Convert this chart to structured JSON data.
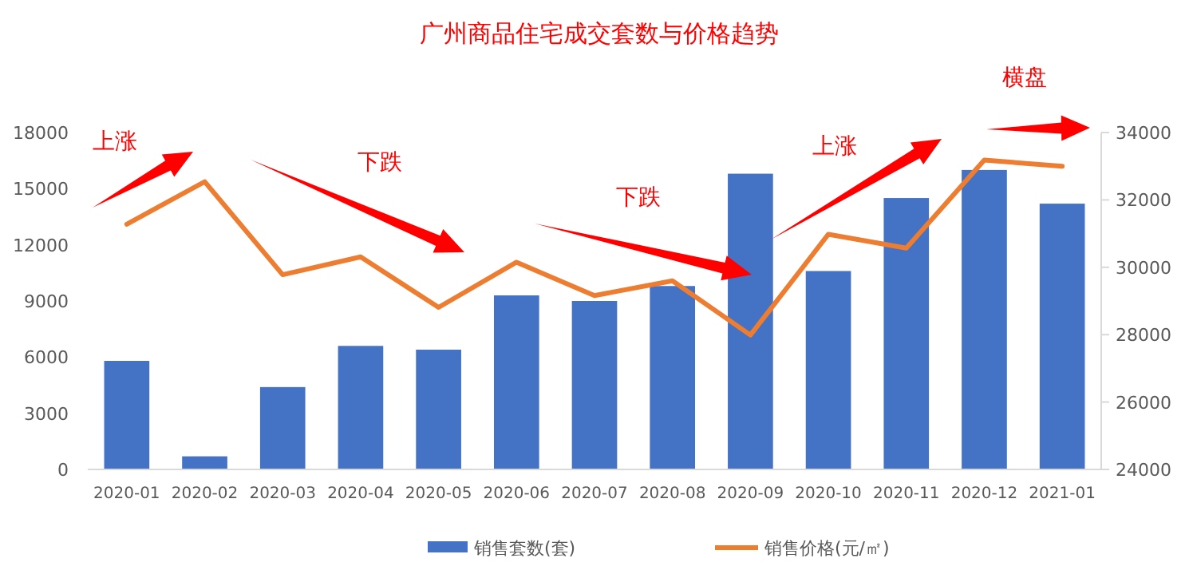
{
  "chart_data": {
    "type": "bar",
    "title": "广州商品住宅成交套数与价格趋势",
    "categories": [
      "2020-01",
      "2020-02",
      "2020-03",
      "2020-04",
      "2020-05",
      "2020-06",
      "2020-07",
      "2020-08",
      "2020-09",
      "2020-10",
      "2020-11",
      "2020-12",
      "2021-01"
    ],
    "series": [
      {
        "name": "销售套数(套)",
        "color": "#4472c4",
        "values": [
          5800,
          700,
          4400,
          6600,
          6400,
          9300,
          9000,
          9800,
          15800,
          10600,
          14500,
          16000,
          14200
        ]
      },
      {
        "name": "销售价格(元/㎡)",
        "type": "line",
        "axis": "y2",
        "color": "#ed7d31",
        "values": [
          31280,
          32540,
          29780,
          30310,
          28810,
          30150,
          29160,
          29600,
          27990,
          30980,
          30570,
          33180,
          33000
        ]
      }
    ],
    "ylim": [
      0,
      18000
    ],
    "yticks": [
      0,
      3000,
      6000,
      9000,
      12000,
      15000,
      18000
    ],
    "y2lim": [
      24000,
      34000
    ],
    "y2ticks": [
      24000,
      26000,
      28000,
      30000,
      32000,
      34000
    ],
    "annotations": [
      "上涨",
      "下跌",
      "下跌",
      "上涨",
      "横盘"
    ],
    "legend": "bottom",
    "grid": false,
    "marker": "none",
    "line_style": "solid"
  }
}
